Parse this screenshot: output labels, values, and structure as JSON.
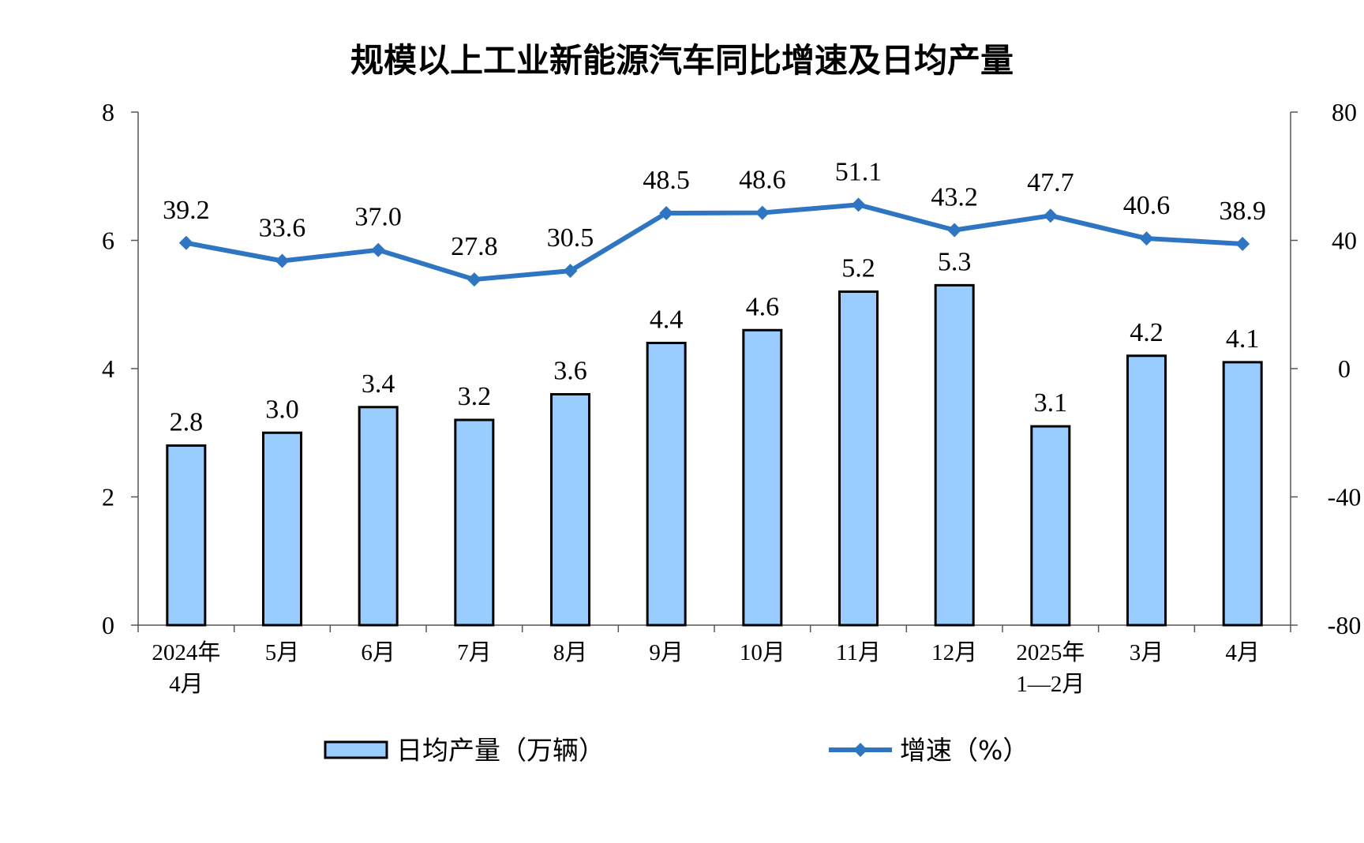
{
  "chart_data": {
    "type": "bar+line",
    "title": "规模以上工业新能源汽车同比增速及日均产量",
    "categories": [
      [
        "2024年",
        "4月"
      ],
      [
        "5月"
      ],
      [
        "6月"
      ],
      [
        "7月"
      ],
      [
        "8月"
      ],
      [
        "9月"
      ],
      [
        "10月"
      ],
      [
        "11月"
      ],
      [
        "12月"
      ],
      [
        "2025年",
        "1—2月"
      ],
      [
        "3月"
      ],
      [
        "4月"
      ]
    ],
    "series": [
      {
        "name": "日均产量（万辆）",
        "type": "bar",
        "axis": "left",
        "values": [
          2.8,
          3.0,
          3.4,
          3.2,
          3.6,
          4.4,
          4.6,
          5.2,
          5.3,
          3.1,
          4.2,
          4.1
        ],
        "labels": [
          "2.8",
          "3.0",
          "3.4",
          "3.2",
          "3.6",
          "4.4",
          "4.6",
          "5.2",
          "5.3",
          "3.1",
          "4.2",
          "4.1"
        ],
        "color": "#99CCFF",
        "border_color": "#000000"
      },
      {
        "name": "增速（%）",
        "type": "line",
        "axis": "right",
        "marker": "diamond",
        "values": [
          39.2,
          33.6,
          37.0,
          27.8,
          30.5,
          48.5,
          48.6,
          51.1,
          43.2,
          47.7,
          40.6,
          38.9
        ],
        "labels": [
          "39.2",
          "33.6",
          "37.0",
          "27.8",
          "30.5",
          "48.5",
          "48.6",
          "51.1",
          "43.2",
          "47.7",
          "40.6",
          "38.9"
        ],
        "color": "#2E75C2"
      }
    ],
    "left_axis": {
      "ylim": [
        0,
        8
      ],
      "ticks": [
        0,
        2,
        4,
        6,
        8
      ],
      "tick_labels": [
        "0",
        "2",
        "4",
        "6",
        "8"
      ]
    },
    "right_axis": {
      "ylim": [
        -80,
        80
      ],
      "ticks": [
        -80,
        -40,
        0,
        40,
        80
      ],
      "tick_labels": [
        "-80",
        "-40",
        "0",
        "40",
        "80"
      ]
    },
    "grid": false,
    "legend_position": "bottom"
  }
}
